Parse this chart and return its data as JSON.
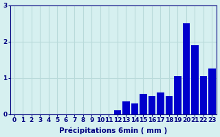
{
  "hours": [
    0,
    1,
    2,
    3,
    4,
    5,
    6,
    7,
    8,
    9,
    10,
    11,
    12,
    13,
    14,
    15,
    16,
    17,
    18,
    19,
    20,
    21,
    22,
    23
  ],
  "values": [
    0,
    0,
    0,
    0,
    0,
    0,
    0,
    0,
    0,
    0,
    0,
    0,
    0.1,
    0.35,
    0.3,
    0.55,
    0.5,
    0.6,
    0.5,
    1.05,
    2.5,
    1.9,
    1.05,
    1.25
  ],
  "bar_color": "#0000cc",
  "bg_color": "#d6f0f0",
  "grid_color": "#b8dada",
  "axis_color": "#000080",
  "xlabel": "Précipitations 6min ( mm )",
  "ylim": [
    0,
    3
  ],
  "yticks": [
    0,
    1,
    2,
    3
  ],
  "xlabel_fontsize": 7.5,
  "tick_fontsize": 6.5
}
